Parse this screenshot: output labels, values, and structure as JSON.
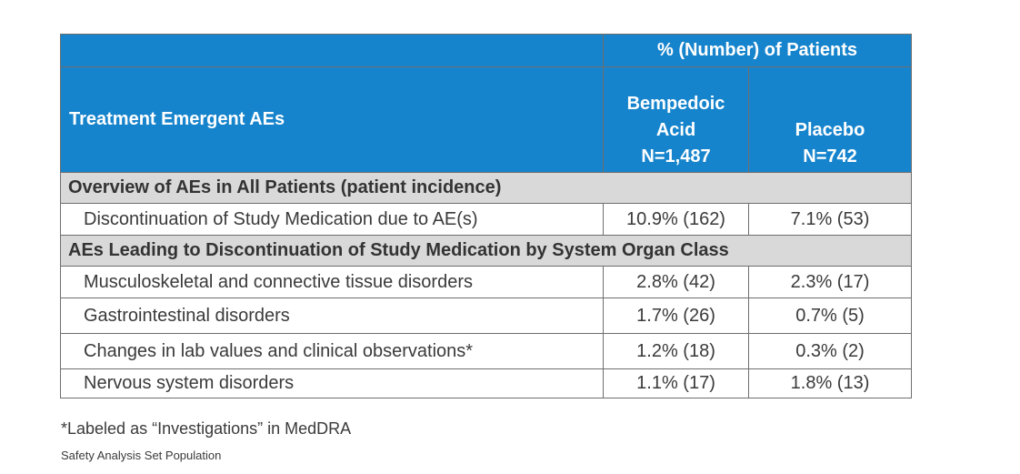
{
  "table": {
    "header": {
      "group_label": "% (Number) of Patients",
      "row_header": "Treatment Emergent AEs",
      "arm1": {
        "line1": "Bempedoic",
        "line2": "Acid",
        "line3": "N=1,487"
      },
      "arm2": {
        "line1": "Placebo",
        "line2": "N=742"
      }
    },
    "section1": {
      "title": "Overview of AEs in All Patients (patient incidence)",
      "rows": [
        {
          "label": "Discontinuation of Study Medication due to AE(s)",
          "bempedoic": "10.9% (162)",
          "placebo": "7.1% (53)"
        }
      ]
    },
    "section2": {
      "title": "AEs Leading to Discontinuation of Study Medication by System Organ Class",
      "rows": [
        {
          "label": "Musculoskeletal and connective tissue disorders",
          "bempedoic": "2.8% (42)",
          "placebo": "2.3% (17)"
        },
        {
          "label": "Gastrointestinal disorders",
          "bempedoic": "1.7% (26)",
          "placebo": "0.7% (5)"
        },
        {
          "label": "Changes in lab values and clinical observations*",
          "bempedoic": "1.2% (18)",
          "placebo": "0.3% (2)"
        },
        {
          "label": "Nervous system disorders",
          "bempedoic": "1.1% (17)",
          "placebo": "1.8% (13)"
        }
      ]
    }
  },
  "footnote": "*Labeled as “Investigations” in MedDRA",
  "population": "Safety Analysis Set Population",
  "colors": {
    "header_bg": "#1684cc",
    "section_bg": "#d9d9d9",
    "border": "#6e6e6e",
    "text": "#333333"
  }
}
